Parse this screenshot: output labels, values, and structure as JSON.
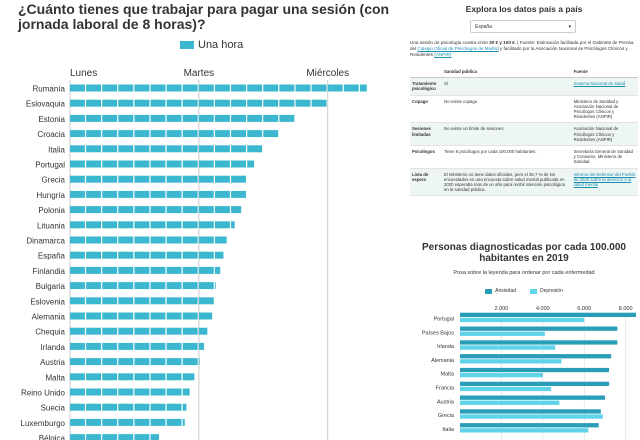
{
  "left_chart": {
    "title": "¿Cuánto tienes que trabajar para pagar una sesión (con jornada laboral de 8 horas)?",
    "legend_label": "Una hora",
    "colors": {
      "bar": "#3bb8d0",
      "grid": "#cccccc"
    },
    "chart_data": {
      "type": "bar",
      "orientation": "horizontal",
      "unit": "hours",
      "x_ticks": [
        {
          "label": "Lunes",
          "value": 0
        },
        {
          "label": "Martes",
          "value": 8
        },
        {
          "label": "Miércoles",
          "value": 16
        }
      ],
      "xlim": [
        0,
        18.5
      ],
      "categories": [
        "Rumanía",
        "Eslovaquia",
        "Estonia",
        "Croacia",
        "Italia",
        "Portugal",
        "Grecia",
        "Hungría",
        "Polonia",
        "Lituania",
        "Dinamarca",
        "España",
        "Finlandia",
        "Bulgaria",
        "Eslovenia",
        "Alemania",
        "Chequia",
        "Irlanda",
        "Austria",
        "Malta",
        "Reino Unido",
        "Suecia",
        "Luxemburgo",
        "Bélgica"
      ],
      "values": [
        18.5,
        16,
        14,
        13,
        12,
        11.5,
        11,
        11,
        10.7,
        10.3,
        9.8,
        9.6,
        9.4,
        9.1,
        9,
        8.9,
        8.6,
        8.4,
        8.1,
        7.8,
        7.5,
        7.3,
        7.2,
        5.6
      ]
    }
  },
  "table_panel": {
    "title": "Explora los datos país a país",
    "select_value": "España",
    "intro": {
      "text_1": "Una sesión de psicología cuesta entre",
      "bold_1": "30 € y 100 €",
      "text_2": ". | Fuente: Estimación facilitada por el Gabinete de Prensa del",
      "link_1": "Colegio Oficial de Psicólogos de Madrid",
      "text_3": "y facilitado por la Asociación Nacional de Psicólogos Clínicos y Residentes",
      "link_2": "(ANPIR)"
    },
    "columns": [
      "",
      "Sanidad pública",
      "Fuente"
    ],
    "rows": [
      {
        "label": "Tratamiento psicológico",
        "value": "Sí",
        "source": "Sistema Nacional de Salud",
        "source_link": true
      },
      {
        "label": "Copago",
        "value": "No existe copago",
        "source": "Ministerio de Sanidad y Asociación Nacional de Psicólogos Clínicos y Residentes (ANPIR)",
        "source_link": false
      },
      {
        "label": "Sesiones limitadas",
        "value": "No existe un límite de sesiones",
        "source": "Asociación Nacional de Psicólogos Clínicos y Residentes (ANPIR)",
        "source_link": false
      },
      {
        "label": "Psicólogos",
        "value": "Tiene 6 psicólogos por cada 100.000 habitantes.",
        "source": "Secretaría General de Sanidad y Consumo. Ministerio de Sanidad",
        "source_link": false
      },
      {
        "label": "Lista de espera",
        "value": "El Ministerio no tiene datos oficiales, pero el 36,7 % de los encuestados en una encuesta sobre salud mental publicada en 2020 esperaba más de un año para recibir atención psicológica en la sanidad pública.",
        "source": "Informe del Defensor del Pueblo de 2020 sobre la atención a la salud mental",
        "source_link": true
      }
    ]
  },
  "right_chart": {
    "title": "Personas diagnosticadas por cada 100.000 habitantes en 2019",
    "subtitle": "Posa sobre la leyenda para ordenar por cada enfermedad",
    "colors": {
      "ansiedad": "#2a9db8",
      "depresion": "#5fd3e8",
      "grid": "#dddddd"
    },
    "chart_data": {
      "type": "bar",
      "orientation": "horizontal",
      "x_ticks": [
        "2.000",
        "4.000",
        "6.000",
        "8.000"
      ],
      "x_tick_values": [
        2000,
        4000,
        6000,
        8000
      ],
      "xlim": [
        0,
        8500
      ],
      "categories": [
        "Portugal",
        "Países Bajos",
        "Irlanda",
        "Alemania",
        "Malta",
        "Francia",
        "Austria",
        "Grecia",
        "Italia"
      ],
      "series": [
        {
          "name": "Ansiedad",
          "values": [
            8500,
            7600,
            7600,
            7300,
            7200,
            7200,
            7000,
            6800,
            6700
          ]
        },
        {
          "name": "Depresión",
          "values": [
            6000,
            4100,
            4600,
            4900,
            4000,
            4400,
            4800,
            6900,
            6200
          ]
        }
      ]
    }
  }
}
